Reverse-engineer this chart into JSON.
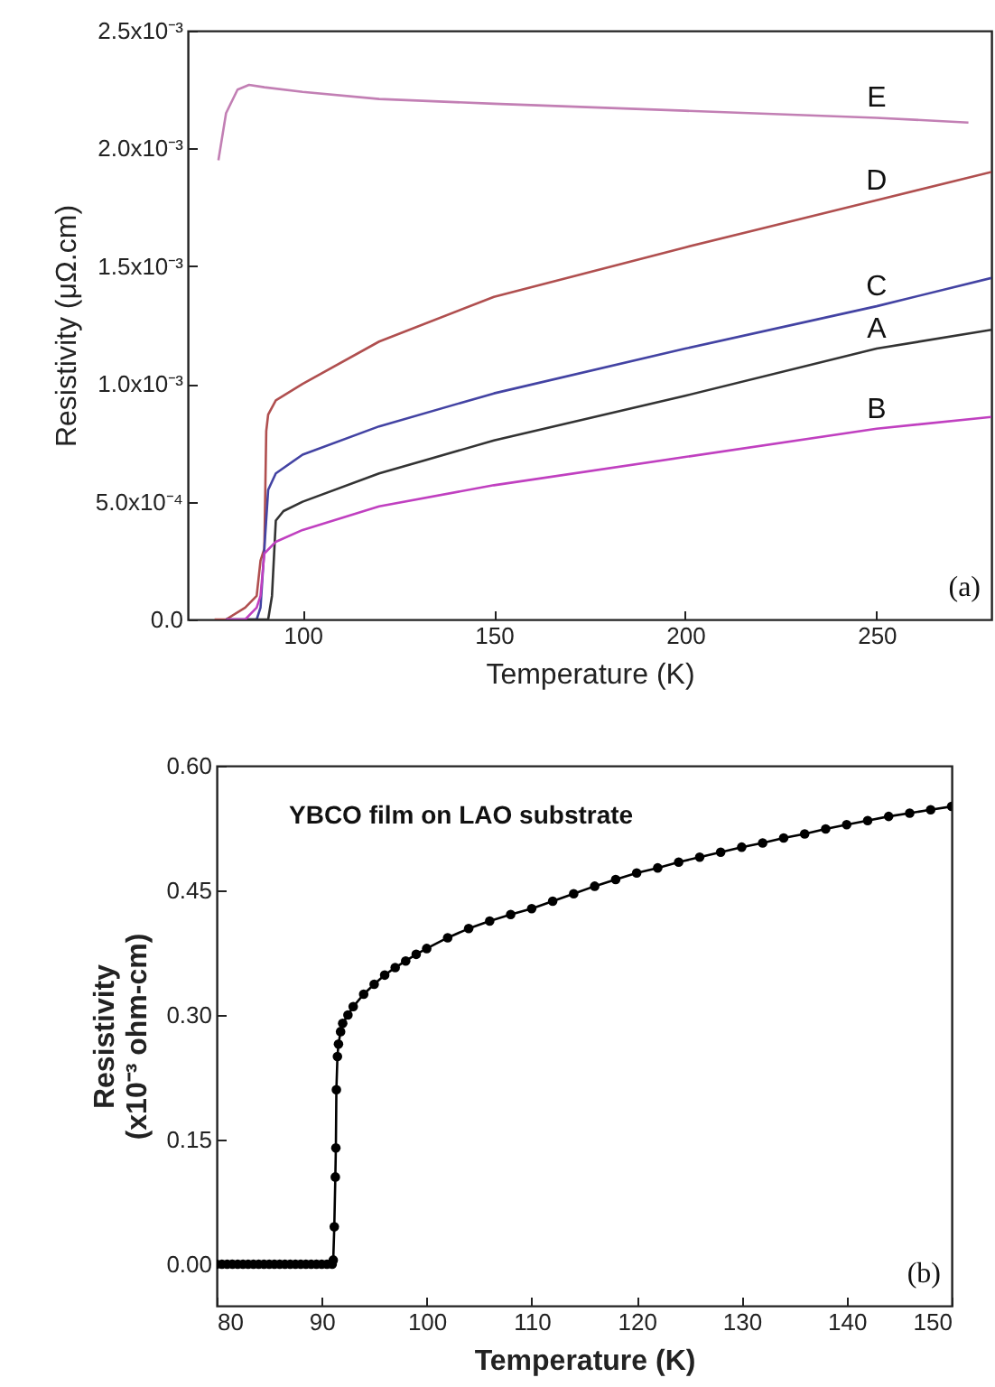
{
  "chart_data": [
    {
      "type": "line",
      "xlabel": "Temperature (K)",
      "ylabel": "Resistivity (μΩ.cm)",
      "xlim": [
        70,
        280
      ],
      "ylim": [
        0,
        0.0025
      ],
      "xticks": [
        100,
        150,
        200,
        250
      ],
      "yticks": [
        {
          "value": 0,
          "label": "0.0"
        },
        {
          "value": 0.0005,
          "label": "5.0x10⁻⁴"
        },
        {
          "value": 0.001,
          "label": "1.0x10⁻³"
        },
        {
          "value": 0.0015,
          "label": "1.5x10⁻³"
        },
        {
          "value": 0.002,
          "label": "2.0x10⁻³"
        },
        {
          "value": 0.0025,
          "label": "2.5x10⁻³"
        }
      ],
      "marker": "none",
      "annotations": [
        "(a)"
      ],
      "series": [
        {
          "name": "E",
          "color": "#c27fb4",
          "x": [
            78,
            80,
            83,
            86,
            90,
            100,
            120,
            150,
            200,
            250,
            274
          ],
          "values": [
            0.00195,
            0.00215,
            0.00225,
            0.00227,
            0.00226,
            0.00224,
            0.00221,
            0.00219,
            0.00216,
            0.00213,
            0.00211
          ]
        },
        {
          "name": "D",
          "color": "#b04f4f",
          "x": [
            77,
            80,
            85,
            88,
            89,
            90,
            90.5,
            91,
            93,
            100,
            120,
            150,
            200,
            250,
            280
          ],
          "values": [
            0,
            0,
            5e-05,
            0.0001,
            0.00025,
            0.0003,
            0.0008,
            0.00087,
            0.00093,
            0.001,
            0.00118,
            0.00137,
            0.00158,
            0.00178,
            0.0019
          ]
        },
        {
          "name": "C",
          "color": "#4343a3",
          "x": [
            80,
            85,
            88,
            89,
            90,
            91,
            93,
            100,
            120,
            150,
            200,
            250,
            280
          ],
          "values": [
            0,
            0,
            0,
            5e-05,
            0.0003,
            0.00055,
            0.00062,
            0.0007,
            0.00082,
            0.00096,
            0.00115,
            0.00133,
            0.00145
          ]
        },
        {
          "name": "A",
          "color": "#333333",
          "x": [
            80,
            88,
            91,
            92,
            93,
            95,
            100,
            120,
            150,
            200,
            250,
            280
          ],
          "values": [
            0,
            0,
            0,
            0.0001,
            0.00042,
            0.00046,
            0.0005,
            0.00062,
            0.00076,
            0.00095,
            0.00115,
            0.00123
          ]
        },
        {
          "name": "B",
          "color": "#c040c0",
          "x": [
            80,
            85,
            88,
            89,
            90,
            93,
            100,
            120,
            150,
            200,
            250,
            280
          ],
          "values": [
            0,
            0,
            5e-05,
            0.0001,
            0.00028,
            0.00033,
            0.00038,
            0.00048,
            0.00057,
            0.00069,
            0.00081,
            0.00086
          ]
        }
      ]
    },
    {
      "type": "line",
      "xlabel": "Temperature (K)",
      "ylabel": "Resistivity\n(x10⁻³ ohm-cm)",
      "xlim": [
        80,
        150
      ],
      "ylim": [
        -0.05,
        0.6
      ],
      "xticks": [
        80,
        90,
        100,
        110,
        120,
        130,
        140,
        150
      ],
      "yticks": [
        {
          "value": 0,
          "label": "0.00"
        },
        {
          "value": 0.15,
          "label": "0.15"
        },
        {
          "value": 0.3,
          "label": "0.30"
        },
        {
          "value": 0.45,
          "label": "0.45"
        },
        {
          "value": 0.6,
          "label": "0.60"
        }
      ],
      "marker": "circle",
      "annotations": [
        "YBCO film on LAO substrate",
        "(b)"
      ],
      "series": [
        {
          "color": "#000000",
          "x": [
            80,
            80.5,
            81,
            81.5,
            82,
            82.5,
            83,
            83.5,
            84,
            84.5,
            85,
            85.5,
            86,
            86.5,
            87,
            87.5,
            88,
            88.5,
            89,
            89.5,
            90,
            90.5,
            91,
            91.1,
            91.2,
            91.3,
            91.35,
            91.4,
            91.5,
            91.6,
            91.8,
            92,
            92.5,
            93,
            94,
            95,
            96,
            97,
            98,
            99,
            100,
            102,
            104,
            106,
            108,
            110,
            112,
            114,
            116,
            118,
            120,
            122,
            124,
            126,
            128,
            130,
            132,
            134,
            136,
            138,
            140,
            142,
            144,
            146,
            148,
            150
          ],
          "values": [
            0,
            0,
            0,
            0,
            0,
            0,
            0,
            0,
            0,
            0,
            0,
            0,
            0,
            0,
            0,
            0,
            0,
            0,
            0,
            0,
            0,
            0,
            0,
            0.005,
            0.045,
            0.105,
            0.14,
            0.21,
            0.25,
            0.265,
            0.28,
            0.29,
            0.3,
            0.31,
            0.325,
            0.337,
            0.348,
            0.357,
            0.365,
            0.373,
            0.38,
            0.393,
            0.404,
            0.413,
            0.421,
            0.428,
            0.437,
            0.446,
            0.455,
            0.463,
            0.471,
            0.477,
            0.484,
            0.49,
            0.496,
            0.502,
            0.507,
            0.513,
            0.518,
            0.524,
            0.529,
            0.534,
            0.539,
            0.543,
            0.547,
            0.551
          ]
        }
      ]
    }
  ]
}
